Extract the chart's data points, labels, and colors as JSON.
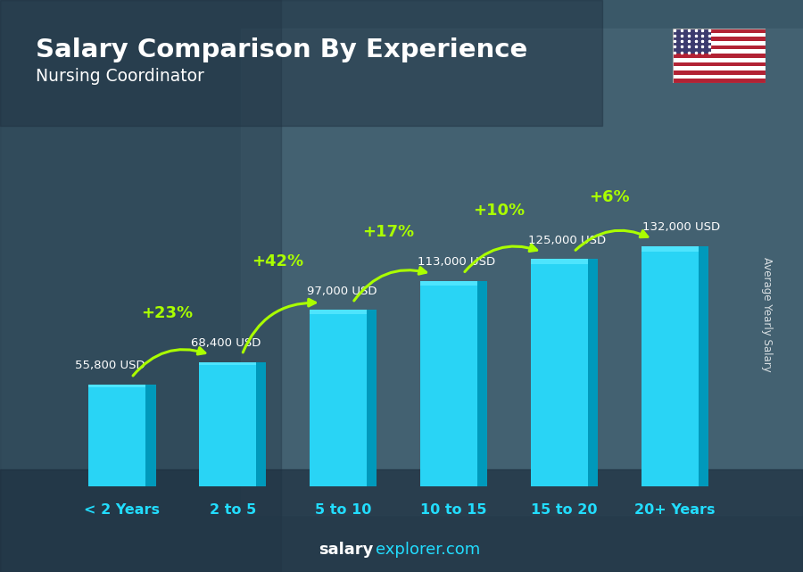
{
  "title": "Salary Comparison By Experience",
  "subtitle": "Nursing Coordinator",
  "categories": [
    "< 2 Years",
    "2 to 5",
    "5 to 10",
    "10 to 15",
    "15 to 20",
    "20+ Years"
  ],
  "values": [
    55800,
    68400,
    97000,
    113000,
    125000,
    132000
  ],
  "labels": [
    "55,800 USD",
    "68,400 USD",
    "97,000 USD",
    "113,000 USD",
    "125,000 USD",
    "132,000 USD"
  ],
  "pct_changes": [
    "+23%",
    "+42%",
    "+17%",
    "+10%",
    "+6%"
  ],
  "bar_face_color": "#29d4f5",
  "bar_side_color": "#0099bb",
  "bar_top_color": "#55e8ff",
  "ylabel": "Average Yearly Salary",
  "watermark_bold": "salary",
  "watermark_normal": "explorer.com",
  "title_color": "#ffffff",
  "subtitle_color": "#ffffff",
  "label_color": "#ffffff",
  "pct_color": "#aaff00",
  "xlabel_color": "#22ddff",
  "bg_color": "#3a5a6a",
  "bg_dark": "#1e3545"
}
